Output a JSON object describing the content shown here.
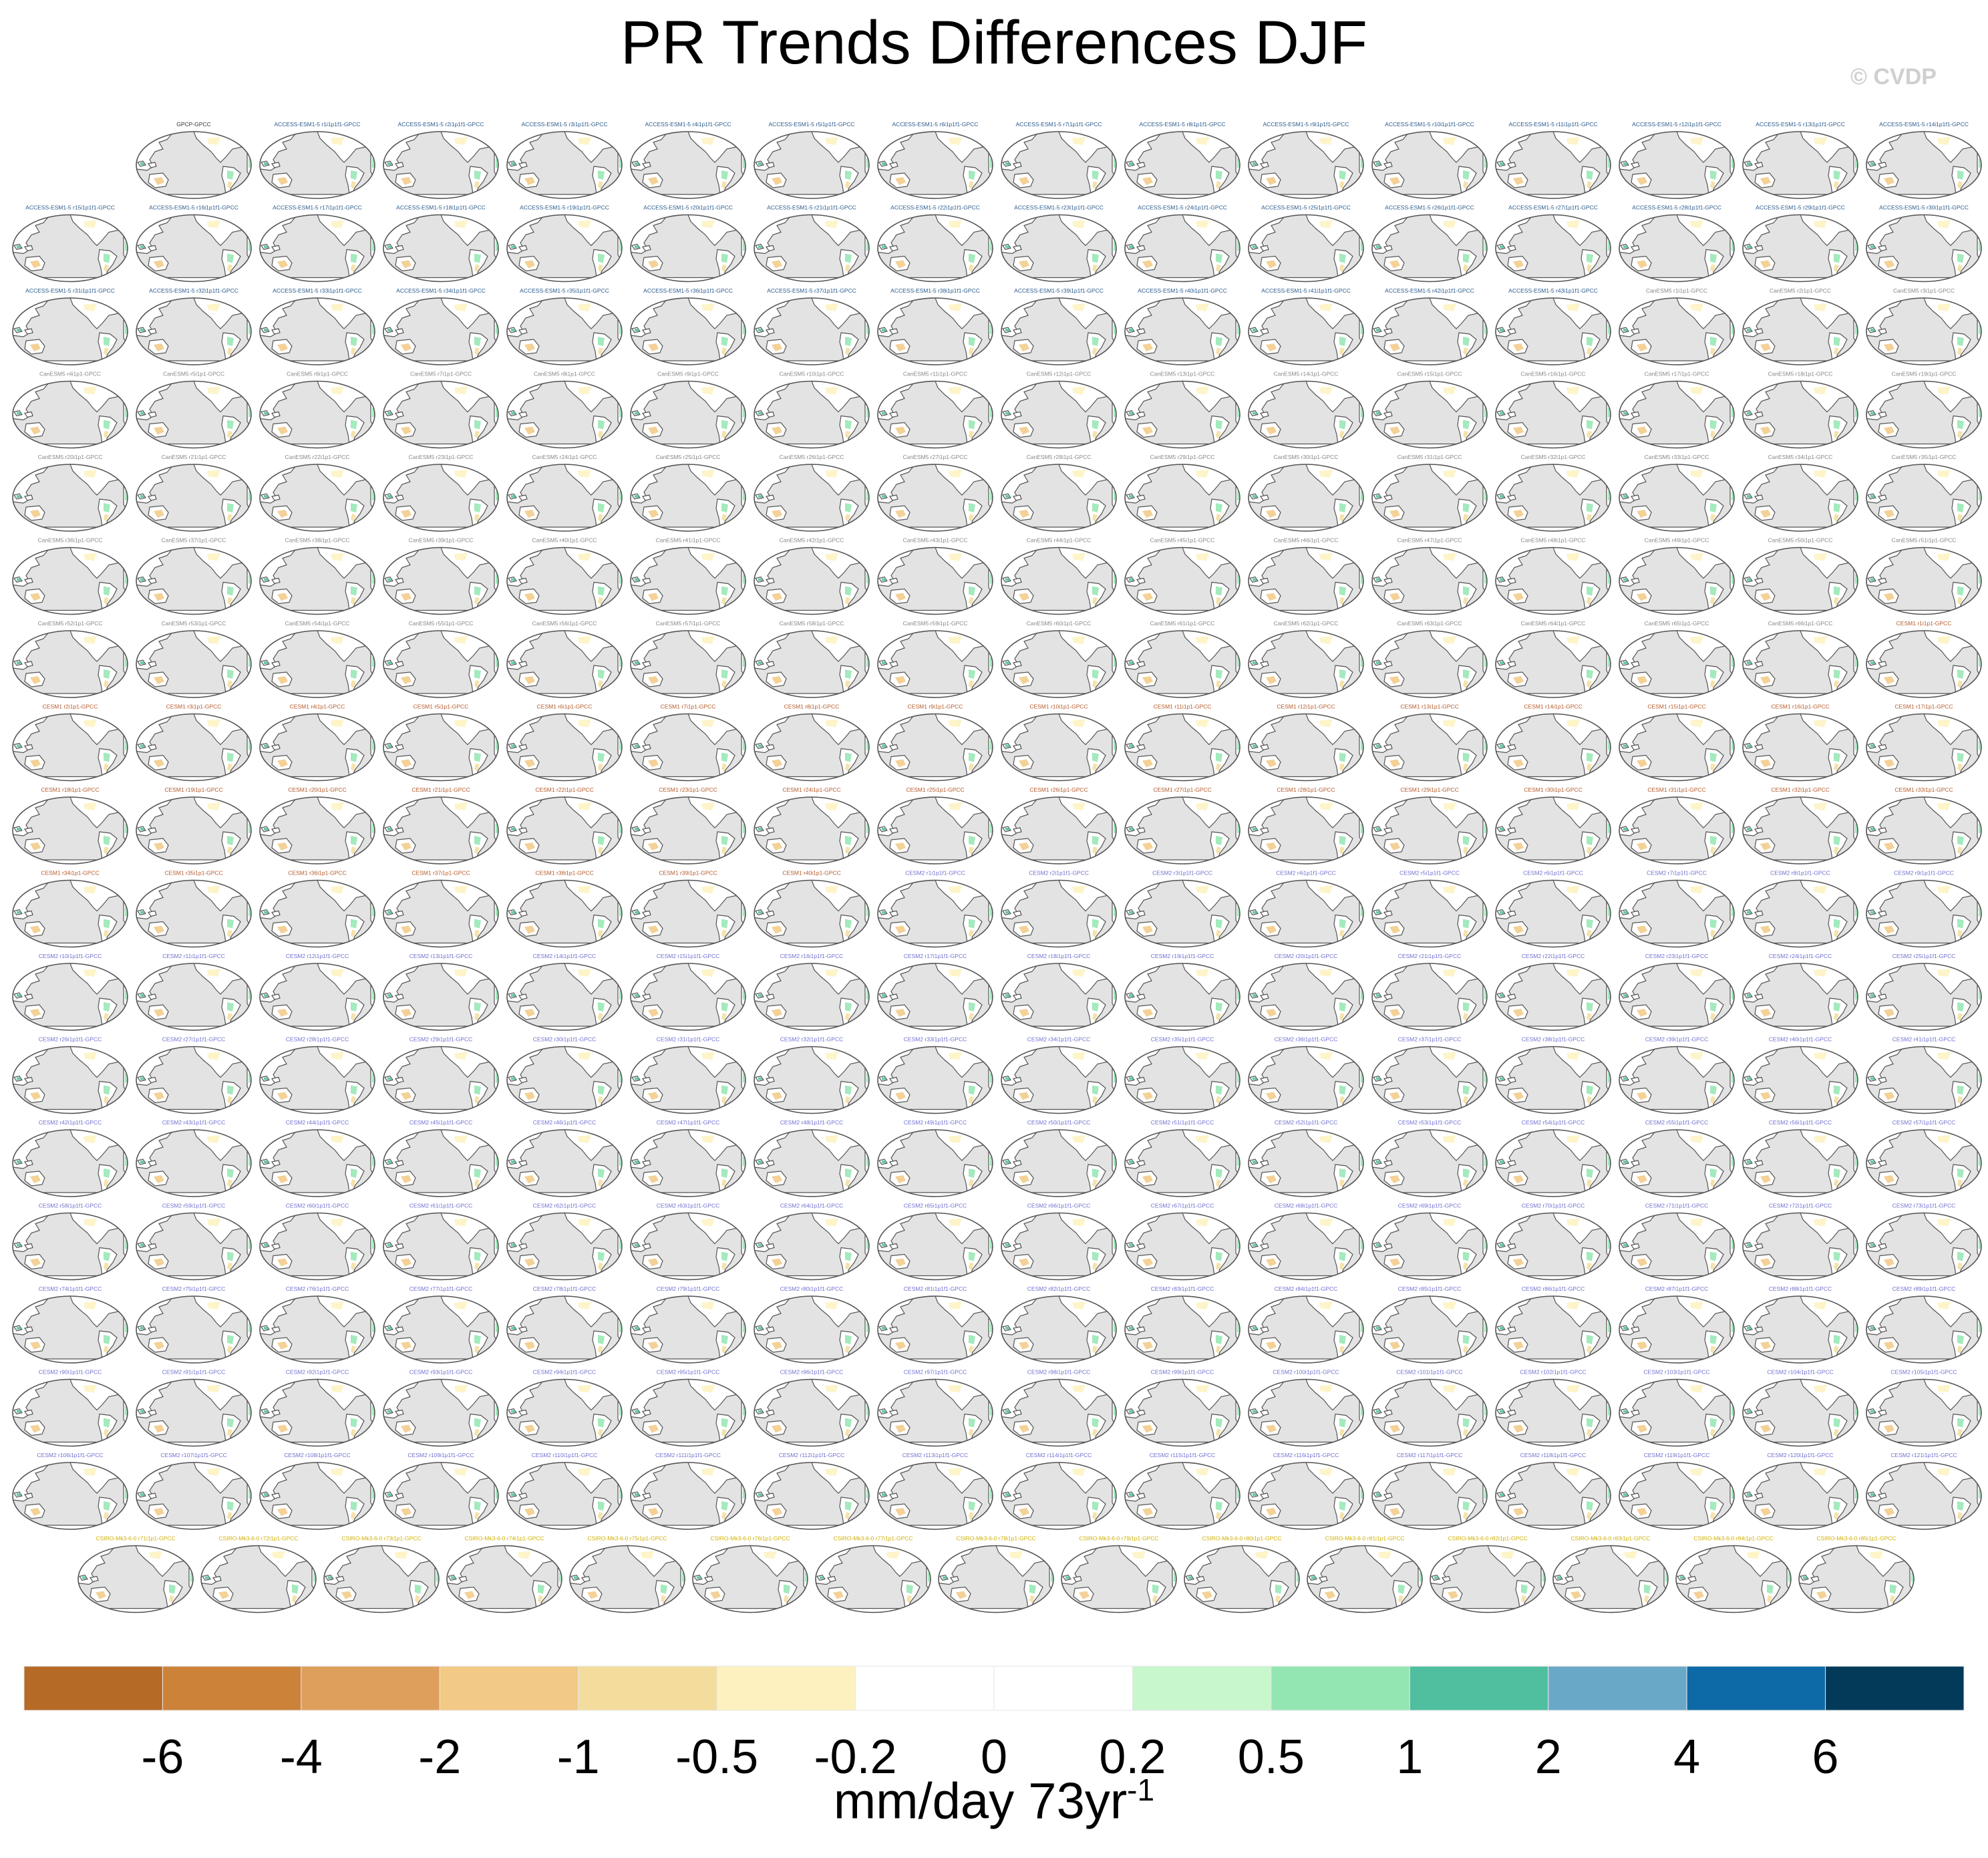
{
  "chart_data": {
    "type": "heatmap",
    "title": "PR Trends Differences DJF",
    "watermark": "© CVDP",
    "panel_title_observed": "GPCP-GPCC",
    "panel_labels": {
      "access": "ACCESS-ESM1-5",
      "canesm": "CanESM5",
      "cesm1": "CESM1",
      "cesm2": "CESM2",
      "csiro": "CSIRO-Mk3-6-0",
      "suffix": "-GPCC"
    },
    "row_counts": [
      15,
      16,
      16,
      16,
      16,
      16,
      16,
      16,
      16,
      16,
      16,
      16,
      16,
      16,
      16,
      16,
      16,
      15
    ],
    "colorbar": {
      "colors": [
        "#b56a26",
        "#cc8339",
        "#df9f5c",
        "#f2c985",
        "#f4dd9c",
        "#fdf2bf",
        "#ffffff",
        "#ffffff",
        "#c9f7cc",
        "#93e6b2",
        "#4fbf9f",
        "#6aa8c8",
        "#0d6aa6",
        "#033a5a"
      ],
      "ticks": [
        "-6",
        "-4",
        "-2",
        "-1",
        "-0.5",
        "-0.2",
        "0",
        "0.2",
        "0.5",
        "1",
        "2",
        "4",
        "6"
      ],
      "label": "mm/day 73yr",
      "label_superscript": "-1"
    }
  }
}
